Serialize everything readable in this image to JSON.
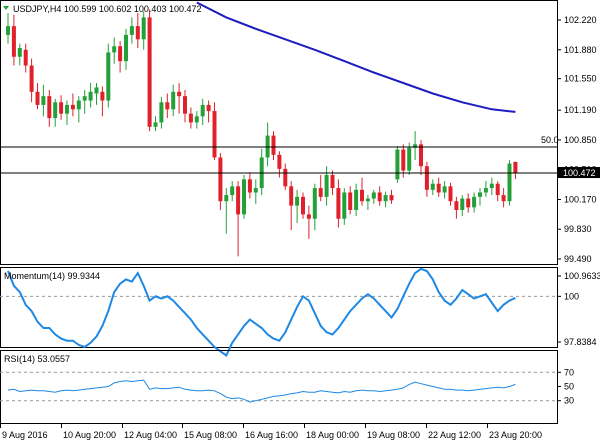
{
  "chart_data": [
    {
      "type": "candlestick",
      "title": "USDJPY,H4  100.599 100.602 100.403 100.472",
      "symbol": "USDJPY",
      "timeframe": "H4",
      "ohlc_header": {
        "open": 100.599,
        "high": 100.602,
        "low": 100.403,
        "close": 100.472
      },
      "current_price_label": "100.472",
      "horizontal_line_label": "50.0",
      "horizontal_levels": [
        100.77,
        100.472
      ],
      "y_ticks": [
        "102.220",
        "101.880",
        "101.550",
        "101.190",
        "100.850",
        "100.510",
        "100.170",
        "99.830",
        "99.490"
      ],
      "y_tick_values": [
        102.22,
        101.88,
        101.55,
        101.19,
        100.85,
        100.51,
        100.17,
        99.83,
        99.49
      ],
      "ylim": [
        99.49,
        102.38
      ],
      "x_ticks": [
        "9 Aug 2016",
        "10 Aug 20:00",
        "12 Aug 04:00",
        "15 Aug 08:00",
        "16 Aug 16:00",
        "18 Aug 00:00",
        "19 Aug 08:00",
        "22 Aug 12:00",
        "23 Aug 20:00"
      ],
      "colors": {
        "bull": "#24a03a",
        "bear": "#e0202a",
        "moving_average": "#1c1cc0",
        "price_line": "#000000"
      },
      "candles": [
        {
          "o": 102.05,
          "h": 102.3,
          "l": 101.95,
          "c": 102.15
        },
        {
          "o": 102.15,
          "h": 102.28,
          "l": 101.7,
          "c": 101.8
        },
        {
          "o": 101.8,
          "h": 101.95,
          "l": 101.7,
          "c": 101.9
        },
        {
          "o": 101.88,
          "h": 101.95,
          "l": 101.62,
          "c": 101.7
        },
        {
          "o": 101.7,
          "h": 101.78,
          "l": 101.28,
          "c": 101.4
        },
        {
          "o": 101.4,
          "h": 101.5,
          "l": 101.2,
          "c": 101.25
        },
        {
          "o": 101.25,
          "h": 101.48,
          "l": 101.12,
          "c": 101.35
        },
        {
          "o": 101.35,
          "h": 101.42,
          "l": 101.0,
          "c": 101.1
        },
        {
          "o": 101.1,
          "h": 101.32,
          "l": 101.0,
          "c": 101.28
        },
        {
          "o": 101.28,
          "h": 101.36,
          "l": 101.08,
          "c": 101.15
        },
        {
          "o": 101.15,
          "h": 101.3,
          "l": 101.02,
          "c": 101.25
        },
        {
          "o": 101.25,
          "h": 101.38,
          "l": 101.12,
          "c": 101.2
        },
        {
          "o": 101.2,
          "h": 101.35,
          "l": 101.05,
          "c": 101.3
        },
        {
          "o": 101.3,
          "h": 101.42,
          "l": 101.15,
          "c": 101.35
        },
        {
          "o": 101.3,
          "h": 101.5,
          "l": 101.22,
          "c": 101.4
        },
        {
          "o": 101.38,
          "h": 101.5,
          "l": 101.25,
          "c": 101.45
        },
        {
          "o": 101.4,
          "h": 101.46,
          "l": 101.12,
          "c": 101.3
        },
        {
          "o": 101.3,
          "h": 101.95,
          "l": 101.22,
          "c": 101.85
        },
        {
          "o": 101.85,
          "h": 102.02,
          "l": 101.72,
          "c": 101.92
        },
        {
          "o": 101.92,
          "h": 101.98,
          "l": 101.62,
          "c": 101.75
        },
        {
          "o": 101.75,
          "h": 102.12,
          "l": 101.65,
          "c": 102.05
        },
        {
          "o": 102.05,
          "h": 102.25,
          "l": 101.95,
          "c": 102.15
        },
        {
          "o": 102.15,
          "h": 102.3,
          "l": 101.9,
          "c": 102.0
        },
        {
          "o": 102.0,
          "h": 102.32,
          "l": 101.88,
          "c": 102.25
        },
        {
          "o": 102.25,
          "h": 102.34,
          "l": 100.95,
          "c": 101.0
        },
        {
          "o": 101.0,
          "h": 101.12,
          "l": 100.95,
          "c": 101.05
        },
        {
          "o": 101.05,
          "h": 101.34,
          "l": 100.98,
          "c": 101.28
        },
        {
          "o": 101.28,
          "h": 101.38,
          "l": 101.1,
          "c": 101.2
        },
        {
          "o": 101.2,
          "h": 101.48,
          "l": 101.12,
          "c": 101.4
        },
        {
          "o": 101.4,
          "h": 101.5,
          "l": 101.15,
          "c": 101.35
        },
        {
          "o": 101.35,
          "h": 101.42,
          "l": 101.05,
          "c": 101.15
        },
        {
          "o": 101.15,
          "h": 101.22,
          "l": 100.98,
          "c": 101.05
        },
        {
          "o": 101.05,
          "h": 101.18,
          "l": 100.98,
          "c": 101.12
        },
        {
          "o": 101.12,
          "h": 101.32,
          "l": 101.02,
          "c": 101.25
        },
        {
          "o": 101.25,
          "h": 101.3,
          "l": 101.05,
          "c": 101.18
        },
        {
          "o": 101.18,
          "h": 101.28,
          "l": 100.62,
          "c": 100.65
        },
        {
          "o": 100.65,
          "h": 100.7,
          "l": 100.05,
          "c": 100.15
        },
        {
          "o": 100.15,
          "h": 100.3,
          "l": 99.78,
          "c": 100.22
        },
        {
          "o": 100.22,
          "h": 100.38,
          "l": 100.15,
          "c": 100.32
        },
        {
          "o": 100.32,
          "h": 100.38,
          "l": 99.52,
          "c": 100.0
        },
        {
          "o": 100.0,
          "h": 100.45,
          "l": 99.95,
          "c": 100.4
        },
        {
          "o": 100.4,
          "h": 100.48,
          "l": 100.18,
          "c": 100.25
        },
        {
          "o": 100.25,
          "h": 100.4,
          "l": 100.12,
          "c": 100.3
        },
        {
          "o": 100.3,
          "h": 100.75,
          "l": 100.22,
          "c": 100.65
        },
        {
          "o": 100.65,
          "h": 101.05,
          "l": 100.55,
          "c": 100.9
        },
        {
          "o": 100.9,
          "h": 100.95,
          "l": 100.62,
          "c": 100.68
        },
        {
          "o": 100.68,
          "h": 100.72,
          "l": 100.42,
          "c": 100.52
        },
        {
          "o": 100.52,
          "h": 100.58,
          "l": 100.28,
          "c": 100.32
        },
        {
          "o": 100.32,
          "h": 100.38,
          "l": 99.82,
          "c": 100.1
        },
        {
          "o": 100.1,
          "h": 100.28,
          "l": 99.9,
          "c": 100.2
        },
        {
          "o": 100.2,
          "h": 100.25,
          "l": 99.95,
          "c": 100.0
        },
        {
          "o": 100.0,
          "h": 100.1,
          "l": 99.72,
          "c": 99.95
        },
        {
          "o": 99.95,
          "h": 100.35,
          "l": 99.82,
          "c": 100.3
        },
        {
          "o": 100.3,
          "h": 100.45,
          "l": 100.15,
          "c": 100.2
        },
        {
          "o": 100.2,
          "h": 100.55,
          "l": 100.1,
          "c": 100.45
        },
        {
          "o": 100.45,
          "h": 100.5,
          "l": 100.22,
          "c": 100.3
        },
        {
          "o": 100.3,
          "h": 100.4,
          "l": 99.85,
          "c": 99.95
        },
        {
          "o": 99.95,
          "h": 100.3,
          "l": 99.88,
          "c": 100.25
        },
        {
          "o": 100.25,
          "h": 100.32,
          "l": 100.0,
          "c": 100.05
        },
        {
          "o": 100.05,
          "h": 100.35,
          "l": 99.98,
          "c": 100.28
        },
        {
          "o": 100.28,
          "h": 100.42,
          "l": 100.1,
          "c": 100.15
        },
        {
          "o": 100.15,
          "h": 100.22,
          "l": 100.05,
          "c": 100.18
        },
        {
          "o": 100.18,
          "h": 100.28,
          "l": 100.12,
          "c": 100.25
        },
        {
          "o": 100.25,
          "h": 100.32,
          "l": 100.1,
          "c": 100.15
        },
        {
          "o": 100.15,
          "h": 100.26,
          "l": 100.08,
          "c": 100.22
        },
        {
          "o": 100.22,
          "h": 100.28,
          "l": 100.12,
          "c": 100.16
        },
        {
          "o": 100.4,
          "h": 100.78,
          "l": 100.36,
          "c": 100.74
        },
        {
          "o": 100.74,
          "h": 100.8,
          "l": 100.42,
          "c": 100.5
        },
        {
          "o": 100.5,
          "h": 100.82,
          "l": 100.45,
          "c": 100.76
        },
        {
          "o": 100.76,
          "h": 100.95,
          "l": 100.62,
          "c": 100.8
        },
        {
          "o": 100.8,
          "h": 100.85,
          "l": 100.45,
          "c": 100.55
        },
        {
          "o": 100.55,
          "h": 100.6,
          "l": 100.2,
          "c": 100.28
        },
        {
          "o": 100.28,
          "h": 100.4,
          "l": 100.22,
          "c": 100.35
        },
        {
          "o": 100.35,
          "h": 100.42,
          "l": 100.2,
          "c": 100.25
        },
        {
          "o": 100.25,
          "h": 100.38,
          "l": 100.18,
          "c": 100.32
        },
        {
          "o": 100.32,
          "h": 100.36,
          "l": 100.1,
          "c": 100.15
        },
        {
          "o": 100.15,
          "h": 100.2,
          "l": 99.95,
          "c": 100.05
        },
        {
          "o": 100.05,
          "h": 100.22,
          "l": 99.98,
          "c": 100.18
        },
        {
          "o": 100.18,
          "h": 100.24,
          "l": 100.02,
          "c": 100.08
        },
        {
          "o": 100.08,
          "h": 100.25,
          "l": 100.02,
          "c": 100.2
        },
        {
          "o": 100.2,
          "h": 100.3,
          "l": 100.1,
          "c": 100.25
        },
        {
          "o": 100.25,
          "h": 100.38,
          "l": 100.2,
          "c": 100.3
        },
        {
          "o": 100.3,
          "h": 100.42,
          "l": 100.22,
          "c": 100.35
        },
        {
          "o": 100.35,
          "h": 100.38,
          "l": 100.15,
          "c": 100.22
        },
        {
          "o": 100.22,
          "h": 100.3,
          "l": 100.08,
          "c": 100.15
        },
        {
          "o": 100.15,
          "h": 100.62,
          "l": 100.1,
          "c": 100.58
        },
        {
          "o": 100.599,
          "h": 100.602,
          "l": 100.403,
          "c": 100.472
        }
      ],
      "moving_average": [
        {
          "i": 32,
          "v": 102.42
        },
        {
          "i": 37,
          "v": 102.25
        },
        {
          "i": 42,
          "v": 102.12
        },
        {
          "i": 47,
          "v": 102.0
        },
        {
          "i": 52,
          "v": 101.88
        },
        {
          "i": 57,
          "v": 101.75
        },
        {
          "i": 62,
          "v": 101.62
        },
        {
          "i": 67,
          "v": 101.5
        },
        {
          "i": 72,
          "v": 101.38
        },
        {
          "i": 77,
          "v": 101.28
        },
        {
          "i": 82,
          "v": 101.2
        },
        {
          "i": 86,
          "v": 101.17
        }
      ]
    },
    {
      "type": "line",
      "title": "Momentum(14) 99.9344",
      "series": [
        {
          "name": "Momentum(14)",
          "values": [
            101.2,
            100.5,
            100.2,
            99.6,
            99.3,
            98.8,
            98.5,
            98.5,
            98.2,
            98.0,
            97.9,
            97.9,
            97.7,
            97.6,
            97.8,
            98.1,
            98.6,
            99.3,
            100.2,
            100.6,
            100.8,
            100.7,
            101.1,
            100.5,
            99.8,
            100.0,
            99.9,
            100.0,
            99.8,
            99.5,
            99.2,
            98.9,
            98.5,
            98.2,
            97.9,
            97.6,
            97.4,
            97.2,
            97.8,
            98.2,
            98.6,
            98.9,
            98.7,
            98.5,
            98.2,
            98.0,
            97.9,
            98.3,
            98.9,
            99.5,
            100.0,
            99.8,
            99.2,
            98.6,
            98.3,
            98.2,
            98.5,
            98.9,
            99.3,
            99.6,
            99.9,
            100.1,
            99.9,
            99.6,
            99.3,
            99.0,
            99.4,
            100.0,
            100.6,
            101.1,
            101.3,
            101.2,
            100.8,
            100.2,
            99.8,
            99.6,
            99.9,
            100.3,
            100.1,
            99.9,
            100.0,
            100.1,
            99.7,
            99.3,
            99.6,
            99.8,
            99.93
          ]
        }
      ],
      "y_ticks": [
        "100.9633",
        "100",
        "97.8384"
      ],
      "y_tick_values": [
        100.9633,
        100,
        97.8384
      ],
      "reference_levels": [
        100
      ],
      "ylim": [
        97.2,
        101.4
      ],
      "color": "#1e88e5"
    },
    {
      "type": "line",
      "title": "RSI(14) 53.0557",
      "series": [
        {
          "name": "RSI(14)",
          "values": [
            45,
            46,
            43,
            44,
            45,
            44,
            44,
            43,
            42,
            44,
            45,
            44,
            45,
            46,
            47,
            48,
            49,
            50,
            55,
            57,
            58,
            57,
            58,
            59,
            46,
            48,
            47,
            47,
            48,
            49,
            46,
            45,
            44,
            44,
            45,
            44,
            40,
            35,
            33,
            34,
            32,
            28,
            30,
            32,
            34,
            36,
            37,
            38,
            40,
            41,
            43,
            42,
            42,
            44,
            43,
            42,
            41,
            43,
            42,
            44,
            45,
            44,
            44,
            43,
            44,
            45,
            46,
            48,
            53,
            56,
            54,
            52,
            50,
            48,
            46,
            46,
            45,
            45,
            44,
            45,
            46,
            47,
            48,
            49,
            48,
            50,
            53
          ]
        }
      ],
      "y_ticks": [
        "70",
        "50",
        "30"
      ],
      "reference_levels": [
        70,
        30
      ],
      "ylim": [
        0,
        100
      ],
      "color": "#1e88e5"
    }
  ]
}
